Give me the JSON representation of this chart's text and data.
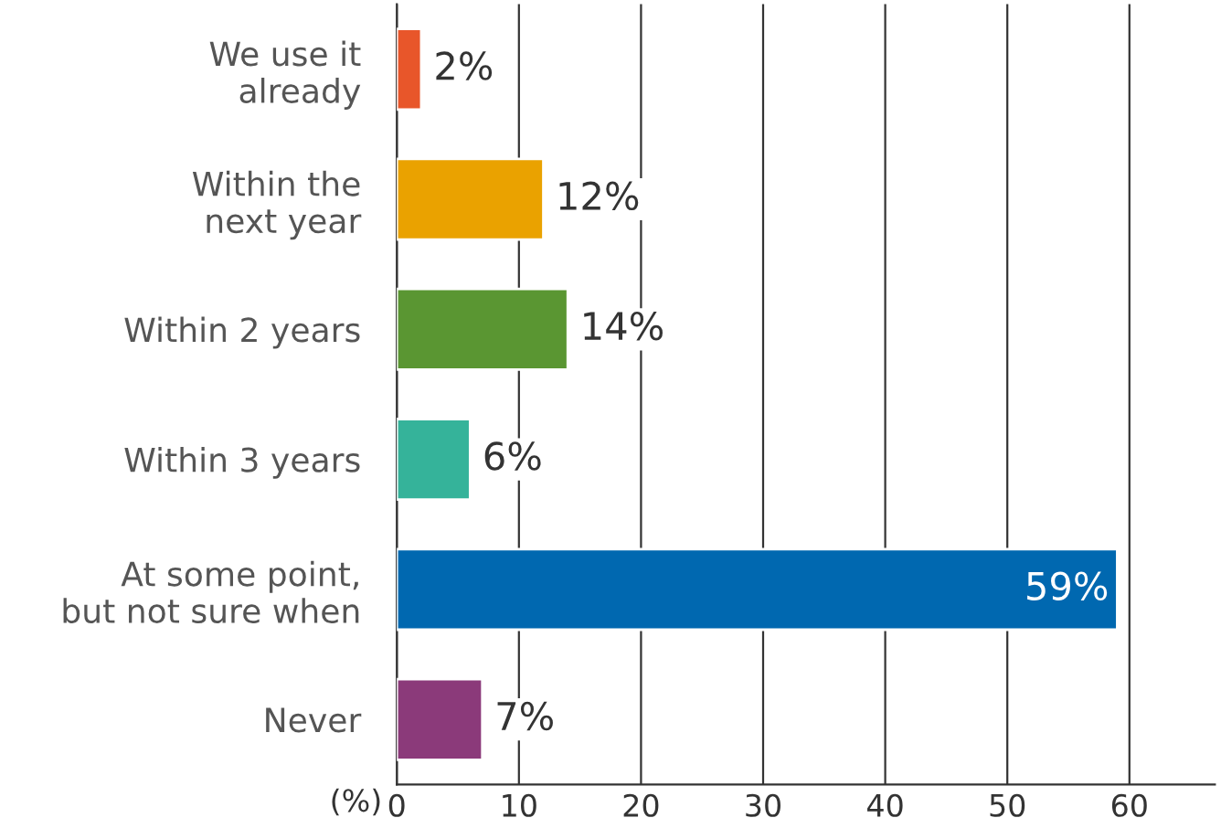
{
  "chart_data": {
    "type": "bar",
    "orientation": "horizontal",
    "xlabel": "(%)",
    "categories": [
      "We use it\nalready",
      "Within the\nnext year",
      "Within 2 years",
      "Within 3 years",
      "At some point,\nbut not sure when",
      "Never"
    ],
    "values": [
      2,
      12,
      14,
      6,
      59,
      7
    ],
    "colors": [
      "#e8562a",
      "#eaa200",
      "#5a9632",
      "#35b39a",
      "#0068b0",
      "#8b3a7a"
    ],
    "value_labels": [
      "2%",
      "12%",
      "14%",
      "6%",
      "59%",
      "7%"
    ],
    "xlim": [
      0,
      67
    ],
    "xticks": [
      0,
      10,
      20,
      30,
      40,
      50,
      60
    ],
    "grid": "x",
    "legend": false
  }
}
